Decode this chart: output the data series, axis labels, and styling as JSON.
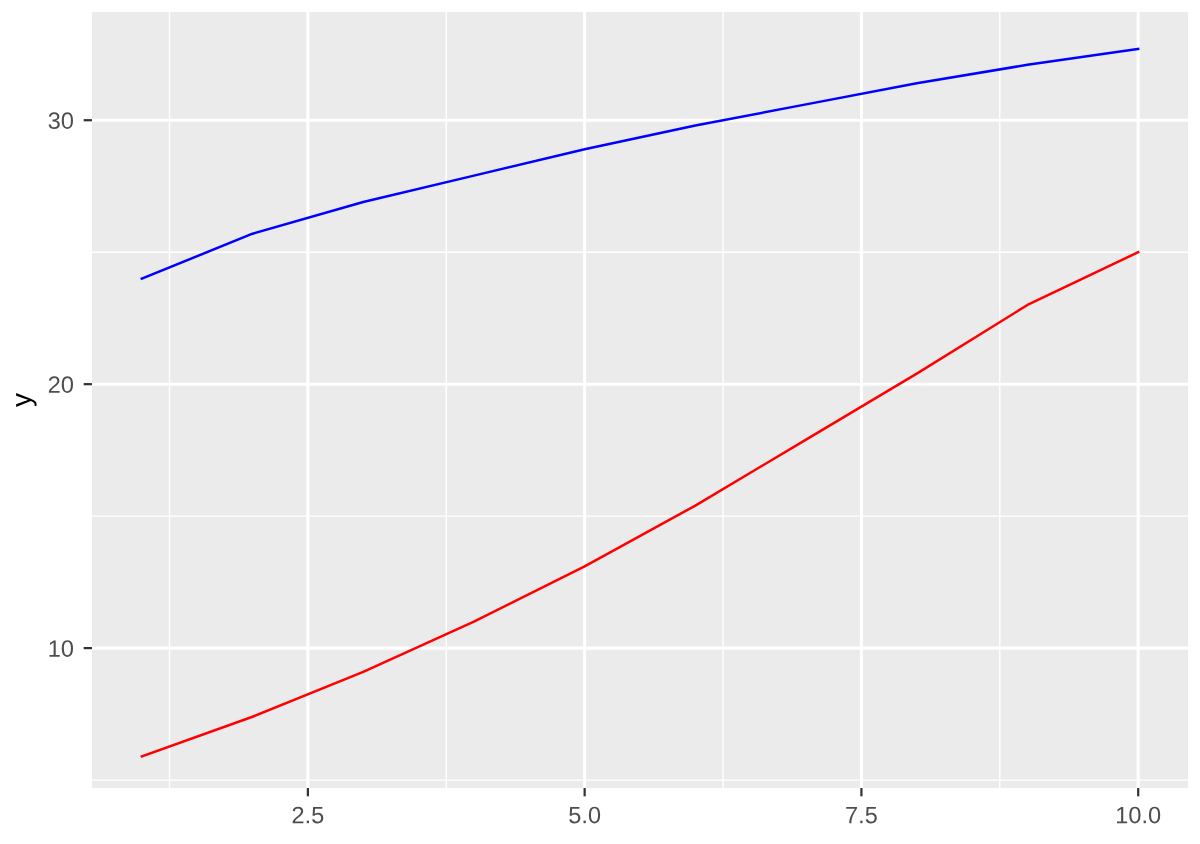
{
  "chart_data": {
    "type": "line",
    "ylabel": "y",
    "x": [
      1,
      2,
      3,
      4,
      5,
      6,
      7,
      8,
      9,
      10
    ],
    "series": [
      {
        "color": "#0000ff",
        "values": [
          24.0,
          25.7,
          26.9,
          27.9,
          28.9,
          29.8,
          30.6,
          31.4,
          32.1,
          32.7
        ]
      },
      {
        "color": "#ff0000",
        "values": [
          5.9,
          7.4,
          9.1,
          11.0,
          13.1,
          15.4,
          17.9,
          20.4,
          23.0,
          25.0
        ]
      }
    ],
    "xlim": [
      0.55,
      10.45
    ],
    "ylim": [
      4.7,
      34.1
    ],
    "xticks": [
      2.5,
      {
        "value": 5,
        "label": "5.0"
      },
      7.5,
      {
        "value": 10,
        "label": "10.0"
      }
    ],
    "yticks": [
      10,
      20,
      30
    ],
    "grid": true,
    "legend": false,
    "marker": "none",
    "line_style": "solid"
  }
}
